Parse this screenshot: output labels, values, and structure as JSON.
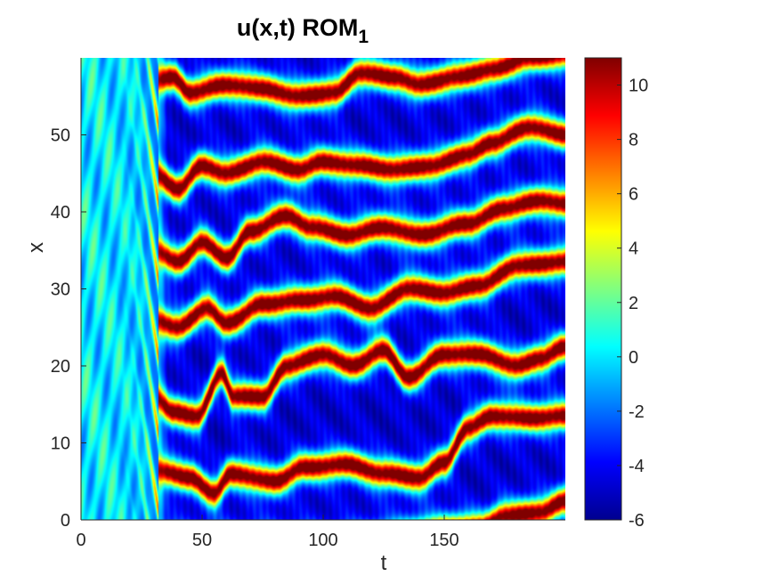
{
  "chart_data": {
    "type": "heatmap",
    "title": "u(x,t) ROM",
    "title_subscript": "1",
    "xlabel": "t",
    "ylabel": "x",
    "xlim": [
      0,
      200
    ],
    "ylim": [
      0,
      60
    ],
    "xticks": [
      0,
      50,
      100,
      150
    ],
    "yticks": [
      0,
      10,
      20,
      30,
      40,
      50
    ],
    "colorbar": {
      "colormap": "jet",
      "clim": [
        -6,
        11
      ],
      "ticks": [
        -6,
        -4,
        -2,
        0,
        2,
        4,
        6,
        8,
        10
      ]
    },
    "transient": {
      "t_end": 32,
      "description_values": {
        "drift_speed": -2.0,
        "amplitude": 1.2
      }
    },
    "ridges": [
      {
        "x0": 6,
        "knots": [
          [
            30,
            6.5
          ],
          [
            45,
            5.5
          ],
          [
            55,
            3.5
          ],
          [
            62,
            6.0
          ],
          [
            80,
            5.0
          ],
          [
            92,
            6.8
          ],
          [
            110,
            7.2
          ],
          [
            125,
            6.0
          ],
          [
            140,
            5.5
          ],
          [
            150,
            7.5
          ],
          [
            160,
            12.0
          ],
          [
            170,
            13.5
          ],
          [
            185,
            13.2
          ],
          [
            200,
            13.5
          ]
        ]
      },
      {
        "x0": 16,
        "knots": [
          [
            30,
            16.0
          ],
          [
            38,
            14.0
          ],
          [
            48,
            13.5
          ],
          [
            58,
            19.0
          ],
          [
            63,
            16.0
          ],
          [
            75,
            16.0
          ],
          [
            85,
            20.0
          ],
          [
            100,
            21.5
          ],
          [
            112,
            20.0
          ],
          [
            125,
            22.0
          ],
          [
            135,
            18.5
          ],
          [
            150,
            21.5
          ],
          [
            165,
            21.5
          ],
          [
            180,
            20.0
          ],
          [
            190,
            21.0
          ],
          [
            200,
            22.5
          ]
        ]
      },
      {
        "x0": 26,
        "knots": [
          [
            30,
            26.0
          ],
          [
            40,
            25.0
          ],
          [
            52,
            27.5
          ],
          [
            60,
            25.5
          ],
          [
            75,
            28.0
          ],
          [
            90,
            28.5
          ],
          [
            105,
            29.0
          ],
          [
            120,
            27.5
          ],
          [
            135,
            30.0
          ],
          [
            150,
            29.5
          ],
          [
            165,
            30.5
          ],
          [
            180,
            33.0
          ],
          [
            200,
            33.5
          ]
        ]
      },
      {
        "x0": 35,
        "knots": [
          [
            30,
            35.0
          ],
          [
            40,
            33.5
          ],
          [
            50,
            36.0
          ],
          [
            60,
            34.0
          ],
          [
            70,
            37.5
          ],
          [
            85,
            39.5
          ],
          [
            95,
            38.0
          ],
          [
            110,
            37.0
          ],
          [
            125,
            38.0
          ],
          [
            140,
            37.0
          ],
          [
            160,
            38.5
          ],
          [
            175,
            40.5
          ],
          [
            190,
            41.5
          ],
          [
            200,
            41.0
          ]
        ]
      },
      {
        "x0": 45,
        "knots": [
          [
            30,
            45.0
          ],
          [
            40,
            43.0
          ],
          [
            50,
            46.0
          ],
          [
            60,
            45.0
          ],
          [
            75,
            46.5
          ],
          [
            90,
            45.5
          ],
          [
            100,
            46.5
          ],
          [
            115,
            46.0
          ],
          [
            130,
            45.5
          ],
          [
            145,
            46.0
          ],
          [
            160,
            47.5
          ],
          [
            170,
            49.0
          ],
          [
            185,
            51.0
          ],
          [
            200,
            50.0
          ]
        ]
      },
      {
        "x0": 55,
        "knots": [
          [
            30,
            57.0
          ],
          [
            38,
            57.5
          ],
          [
            45,
            55.5
          ],
          [
            60,
            56.5
          ],
          [
            75,
            56.0
          ],
          [
            90,
            55.0
          ],
          [
            105,
            55.5
          ],
          [
            115,
            58.0
          ],
          [
            130,
            57.5
          ],
          [
            140,
            56.5
          ],
          [
            155,
            57.5
          ],
          [
            170,
            58.5
          ],
          [
            185,
            60.0
          ],
          [
            200,
            60.5
          ]
        ]
      },
      {
        "x0": -3,
        "knots": [
          [
            30,
            -3.0
          ],
          [
            100,
            -3.0
          ],
          [
            165,
            -1.0
          ],
          [
            175,
            0.5
          ],
          [
            190,
            1.0
          ],
          [
            200,
            2.5
          ]
        ]
      }
    ]
  }
}
